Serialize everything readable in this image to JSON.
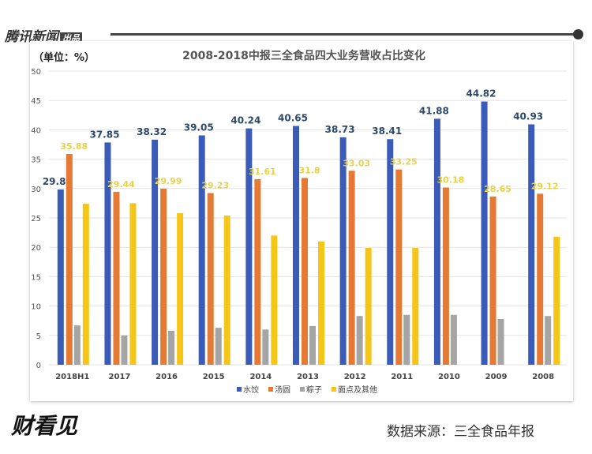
{
  "header": {
    "brand": "腾讯新闻",
    "brand_tag": "出品"
  },
  "footer": {
    "source": "数据来源：三全食品年报",
    "logo": "财看见"
  },
  "chart_data": {
    "type": "bar",
    "title": "2008-2018中报三全食品四大业务营收占比变化",
    "unit": "（单位：%）",
    "ylim": [
      0,
      50
    ],
    "yticks": [
      0,
      5,
      10,
      15,
      20,
      25,
      30,
      35,
      40,
      45,
      50
    ],
    "grid": true,
    "legend": "bottom",
    "categories": [
      "2018H1",
      "2017",
      "2016",
      "2015",
      "2014",
      "2013",
      "2012",
      "2011",
      "2010",
      "2009",
      "2008"
    ],
    "series": [
      {
        "name": "水饺",
        "color": "#3a5bb8",
        "labeled": true,
        "values": [
          29.84,
          37.85,
          38.32,
          39.05,
          40.24,
          40.65,
          38.73,
          38.41,
          41.88,
          44.82,
          40.93
        ]
      },
      {
        "name": "汤圆",
        "color": "#e67a34",
        "labeled": true,
        "values": [
          35.88,
          29.44,
          29.99,
          29.23,
          31.61,
          31.8,
          33.03,
          33.25,
          30.18,
          28.65,
          29.12
        ]
      },
      {
        "name": "粽子",
        "color": "#a5a5a5",
        "labeled": false,
        "values": [
          6.7,
          5.0,
          5.8,
          6.3,
          6.0,
          6.6,
          8.3,
          8.5,
          8.5,
          7.8,
          8.3
        ]
      },
      {
        "name": "面点及其他",
        "color": "#f5c518",
        "labeled": false,
        "values": [
          27.4,
          27.5,
          25.8,
          25.4,
          22.0,
          21.0,
          19.9,
          19.9,
          null,
          null,
          21.8
        ]
      }
    ]
  }
}
